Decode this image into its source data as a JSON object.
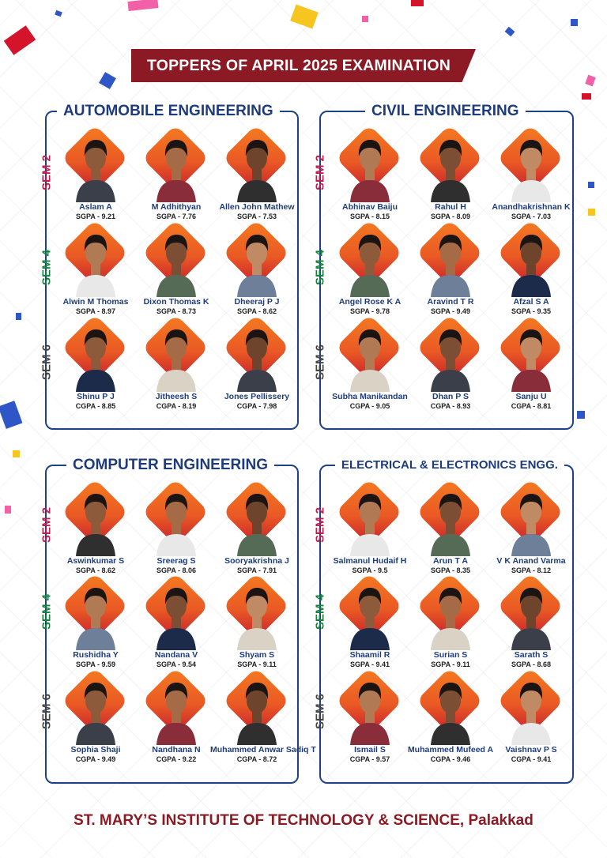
{
  "title": "TOPPERS OF APRIL 2025 EXAMINATION",
  "footer": "ST. MARY’S INSTITUTE OF TECHNOLOGY & SCIENCE, Palakkad",
  "colors": {
    "banner": "#8b1a24",
    "panel_border": "#1e4287",
    "heading": "#1e3c7d",
    "sem2": "#c01c4e",
    "sem4": "#15833f",
    "sem6": "#444444",
    "diamond_start": "#f57b20",
    "diamond_end": "#c61e2e"
  },
  "departments": [
    {
      "name": "AUTOMOBILE ENGINEERING",
      "semesters": [
        {
          "label": "SEM 2",
          "students": [
            {
              "name": "Aslam A",
              "score": "SGPA - 9.21"
            },
            {
              "name": "M Adhithyan",
              "score": "SGPA - 7.76"
            },
            {
              "name": "Allen John Mathew",
              "score": "SGPA - 7.53"
            }
          ]
        },
        {
          "label": "SEM 4",
          "students": [
            {
              "name": "Alwin M Thomas",
              "score": "SGPA - 8.97"
            },
            {
              "name": "Dixon Thomas K",
              "score": "SGPA - 8.73"
            },
            {
              "name": "Dheeraj P J",
              "score": "SGPA - 8.62"
            }
          ]
        },
        {
          "label": "SEM 6",
          "students": [
            {
              "name": "Shinu P J",
              "score": "CGPA - 8.85"
            },
            {
              "name": "Jitheesh S",
              "score": "CGPA - 8.19"
            },
            {
              "name": "Jones Pellissery",
              "score": "CGPA - 7.98"
            }
          ]
        }
      ]
    },
    {
      "name": "CIVIL ENGINEERING",
      "semesters": [
        {
          "label": "SEM 2",
          "students": [
            {
              "name": "Abhinav Baiju",
              "score": "SGPA - 8.15"
            },
            {
              "name": "Rahul H",
              "score": "SGPA - 8.09"
            },
            {
              "name": "Anandhakrishnan K",
              "score": "SGPA - 7.03"
            }
          ]
        },
        {
          "label": "SEM 4",
          "students": [
            {
              "name": "Angel Rose K A",
              "score": "SGPA - 9.78"
            },
            {
              "name": "Aravind T R",
              "score": "SGPA - 9.49"
            },
            {
              "name": "Afzal S A",
              "score": "SGPA - 9.35"
            }
          ]
        },
        {
          "label": "SEM 6",
          "students": [
            {
              "name": "Subha Manikandan",
              "score": "CGPA - 9.05"
            },
            {
              "name": "Dhan P S",
              "score": "CGPA - 8.93"
            },
            {
              "name": "Sanju U",
              "score": "CGPA - 8.81"
            }
          ]
        }
      ]
    },
    {
      "name": "COMPUTER ENGINEERING",
      "semesters": [
        {
          "label": "SEM 2",
          "students": [
            {
              "name": "Aswinkumar S",
              "score": "SGPA - 8.62"
            },
            {
              "name": "Sreerag S",
              "score": "SGPA - 8.06"
            },
            {
              "name": "Sooryakrishna J",
              "score": "SGPA - 7.91"
            }
          ]
        },
        {
          "label": "SEM 4",
          "students": [
            {
              "name": "Rushidha Y",
              "score": "SGPA - 9.59"
            },
            {
              "name": "Nandana V",
              "score": "SGPA - 9.54"
            },
            {
              "name": "Shyam S",
              "score": "SGPA - 9.11"
            }
          ]
        },
        {
          "label": "SEM 6",
          "students": [
            {
              "name": "Sophia Shaji",
              "score": "CGPA - 9.49"
            },
            {
              "name": "Nandhana N",
              "score": "CGPA - 9.22"
            },
            {
              "name": "Muhammed Anwar Sadiq T",
              "score": "CGPA - 8.72"
            }
          ]
        }
      ]
    },
    {
      "name": "ELECTRICAL & ELECTRONICS ENGG.",
      "semesters": [
        {
          "label": "SEM 2",
          "students": [
            {
              "name": "Salmanul Hudaif H",
              "score": "SGPA - 9.5"
            },
            {
              "name": "Arun T A",
              "score": "SGPA - 8.35"
            },
            {
              "name": "V K Anand Varma",
              "score": "SGPA - 8.12"
            }
          ]
        },
        {
          "label": "SEM 4",
          "students": [
            {
              "name": "Shaamil R",
              "score": "SGPA - 9.41"
            },
            {
              "name": "Surian S",
              "score": "SGPA - 9.11"
            },
            {
              "name": "Sarath S",
              "score": "SGPA - 8.68"
            }
          ]
        },
        {
          "label": "SEM 6",
          "students": [
            {
              "name": "Ismail S",
              "score": "CGPA - 9.57"
            },
            {
              "name": "Muhammed Mufeed A",
              "score": "CGPA - 9.46"
            },
            {
              "name": "Vaishnav P S",
              "score": "CGPA - 9.41"
            }
          ]
        }
      ]
    }
  ]
}
